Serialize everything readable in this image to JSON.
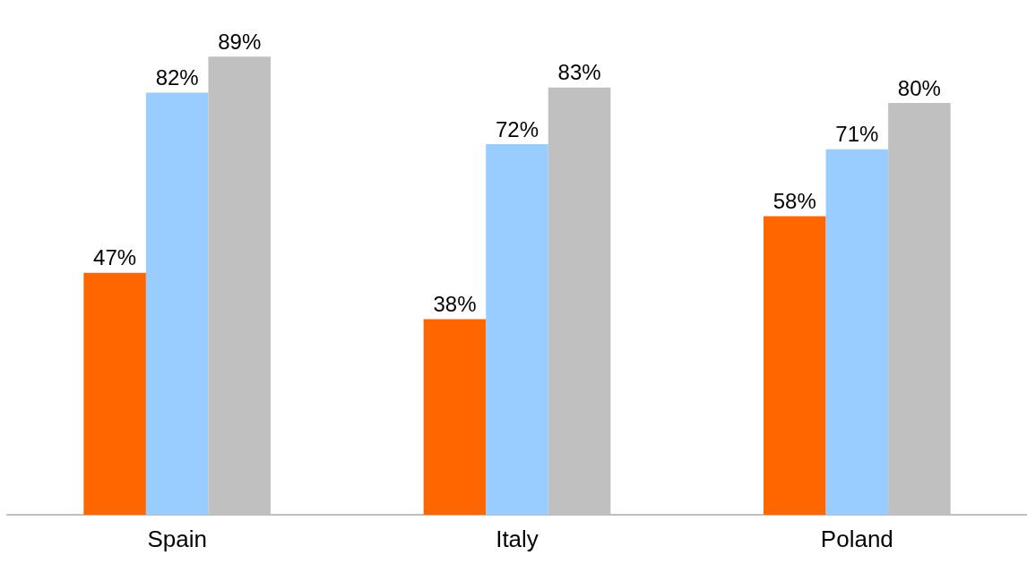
{
  "chart_data": {
    "type": "bar",
    "categories": [
      "Spain",
      "Italy",
      "Poland"
    ],
    "series": [
      {
        "color": "#ff6600",
        "values": [
          47,
          38,
          58
        ],
        "value_labels": [
          "47%",
          "38%",
          "58%"
        ]
      },
      {
        "color": "#99ccff",
        "values": [
          82,
          72,
          71
        ],
        "value_labels": [
          "82%",
          "72%",
          "71%"
        ]
      },
      {
        "color": "#c0c0c0",
        "values": [
          89,
          83,
          80
        ],
        "value_labels": [
          "89%",
          "83%",
          "80%"
        ]
      }
    ]
  }
}
